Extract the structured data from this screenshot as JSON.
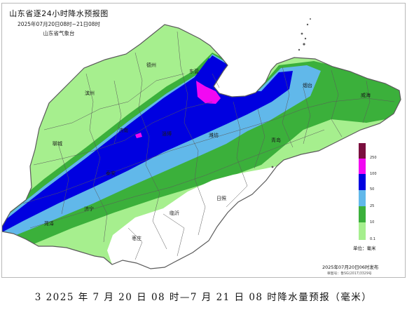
{
  "map": {
    "title": "山东省逐24小时降水预报图",
    "valid_period": "2025年07月20日08时~21日08时",
    "issuer": "山东省气象台",
    "cities": [
      "德州",
      "东营",
      "滨州",
      "烟台",
      "威海",
      "聊城",
      "济南",
      "淄博",
      "潍坊",
      "青岛",
      "泰安",
      "日照",
      "菏泽",
      "济宁",
      "临沂",
      "枣庄"
    ],
    "legend": {
      "thresholds": [
        "250",
        "100",
        "50",
        "25",
        "10",
        "0.1"
      ],
      "colors": [
        "#7a0f3e",
        "#f208f2",
        "#0000e0",
        "#61b8ea",
        "#3bb03b",
        "#a6ef8e"
      ],
      "unit": "单位：毫米"
    },
    "issue_time": "2025年07月20日06时发布",
    "map_approval": "审图号：鲁SG(2017)3329号",
    "background_color": "#ffffff",
    "boundary_color": "#5a5a5a"
  },
  "caption": "3 2025 年 7 月 20 日 08 时—7 月 21 日 08 时降水量预报（毫米）"
}
